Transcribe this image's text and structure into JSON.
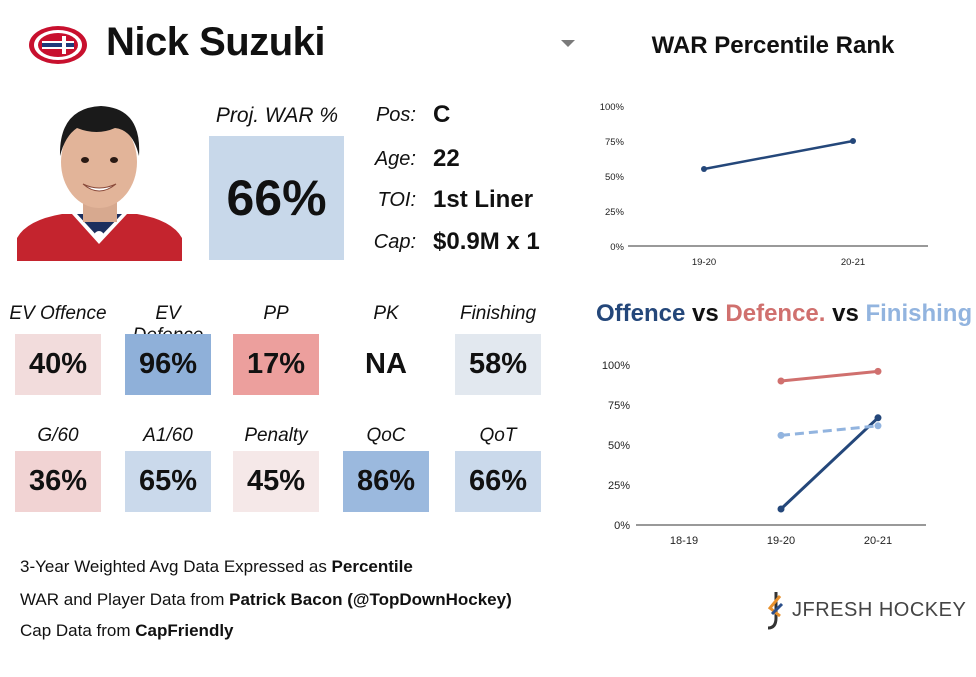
{
  "player": {
    "name": "Nick Suzuki"
  },
  "proj_war": {
    "label": "Proj. WAR %",
    "value": "66%",
    "color": "#c8d8ea"
  },
  "info": [
    {
      "label": "Pos:",
      "value": "C"
    },
    {
      "label": "Age:",
      "value": "22"
    },
    {
      "label": "TOI:",
      "value": "1st Liner"
    },
    {
      "label": "Cap:",
      "value": "$0.9M x 1"
    }
  ],
  "stats": [
    {
      "label": "EV Offence",
      "value": "40%",
      "color": "#f2dcdc"
    },
    {
      "label": "EV Defence",
      "value": "96%",
      "color": "#8fb0d9"
    },
    {
      "label": "PP",
      "value": "17%",
      "color": "#ec9f9d"
    },
    {
      "label": "PK",
      "value": "NA",
      "color": "#ffffff"
    },
    {
      "label": "Finishing",
      "value": "58%",
      "color": "#e2e8ef"
    },
    {
      "label": "G/60",
      "value": "36%",
      "color": "#f1d3d3"
    },
    {
      "label": "A1/60",
      "value": "65%",
      "color": "#cad9eb"
    },
    {
      "label": "Penalty",
      "value": "45%",
      "color": "#f5e8e8"
    },
    {
      "label": "QoC",
      "value": "86%",
      "color": "#9bb9de"
    },
    {
      "label": "QoT",
      "value": "66%",
      "color": "#cad9eb"
    }
  ],
  "footer": {
    "line1": {
      "text": "3-Year Weighted Avg Data Expressed as ",
      "bold": "Percentile"
    },
    "line2": {
      "text": "WAR and Player Data from ",
      "bold": "Patrick Bacon (@TopDownHockey)"
    },
    "line3": {
      "text": "Cap Data from ",
      "bold": "CapFriendly"
    }
  },
  "brand": {
    "text": "JFRESH HOCKEY"
  },
  "colors": {
    "offence": "#d0706e",
    "defence": "#24477a",
    "finishing": "#92b4df",
    "grid": "#333333"
  },
  "chart_titles": {
    "war": "WAR Percentile Rank",
    "ovd": {
      "part1": "Offence",
      "vs1": " vs ",
      "part2": "Defence.",
      "vs2": " vs ",
      "part3": "Finishing"
    }
  },
  "chart_data": [
    {
      "type": "line",
      "title": "WAR Percentile Rank",
      "categories": [
        "19-20",
        "20-21"
      ],
      "series": [
        {
          "values": [
            55,
            75
          ]
        }
      ],
      "ylim": [
        0,
        100
      ],
      "yticks": [
        "0%",
        "25%",
        "50%",
        "75%",
        "100%"
      ],
      "grid": false
    },
    {
      "type": "line",
      "title": "Offence vs Defence. vs Finishing",
      "categories": [
        "18-19",
        "19-20",
        "20-21"
      ],
      "series": [
        {
          "name": "Offence",
          "values": [
            null,
            90,
            96
          ]
        },
        {
          "name": "Defence.",
          "values": [
            null,
            10,
            67
          ]
        },
        {
          "name": "Finishing",
          "values": [
            null,
            56,
            62
          ]
        }
      ],
      "ylim": [
        0,
        100
      ],
      "yticks": [
        "0%",
        "25%",
        "50%",
        "75%",
        "100%"
      ],
      "grid": false
    }
  ]
}
